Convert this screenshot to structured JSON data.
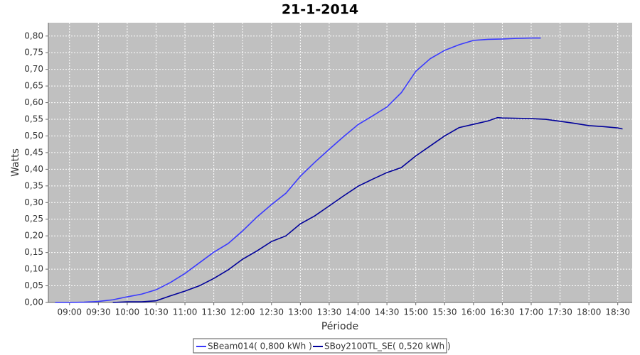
{
  "chart_data": {
    "type": "line",
    "title": "21-1-2014",
    "x_label": "Période",
    "y_label": "Watts",
    "xlim": [
      "08:38",
      "18:45"
    ],
    "xticks": [
      "09:00",
      "09:30",
      "10:00",
      "10:30",
      "11:00",
      "11:30",
      "12:00",
      "12:30",
      "13:00",
      "13:30",
      "14:00",
      "14:30",
      "15:00",
      "15:30",
      "16:00",
      "16:30",
      "17:00",
      "17:30",
      "18:00",
      "18:30"
    ],
    "ylim": [
      0,
      0.84
    ],
    "yticks": [
      {
        "value": 0,
        "label": "0,00"
      },
      {
        "value": 0.05,
        "label": "0,05"
      },
      {
        "value": 0.1,
        "label": "0,10"
      },
      {
        "value": 0.15,
        "label": "0,15"
      },
      {
        "value": 0.2,
        "label": "0,20"
      },
      {
        "value": 0.25,
        "label": "0,25"
      },
      {
        "value": 0.3,
        "label": "0,30"
      },
      {
        "value": 0.35,
        "label": "0,35"
      },
      {
        "value": 0.4,
        "label": "0,40"
      },
      {
        "value": 0.45,
        "label": "0,45"
      },
      {
        "value": 0.5,
        "label": "0,50"
      },
      {
        "value": 0.55,
        "label": "0,55"
      },
      {
        "value": 0.6,
        "label": "0,60"
      },
      {
        "value": 0.65,
        "label": "0,65"
      },
      {
        "value": 0.7,
        "label": "0,70"
      },
      {
        "value": 0.75,
        "label": "0,75"
      },
      {
        "value": 0.8,
        "label": "0,80"
      }
    ],
    "grid": true,
    "legend": "bottom",
    "series": [
      {
        "name": "SBeam014( 0,800 kWh )",
        "color": "#3a3aff",
        "x": [
          "08:45",
          "09:00",
          "09:15",
          "09:30",
          "09:45",
          "10:00",
          "10:15",
          "10:30",
          "10:45",
          "11:00",
          "11:15",
          "11:30",
          "11:45",
          "12:00",
          "12:15",
          "12:30",
          "12:45",
          "13:00",
          "13:15",
          "13:30",
          "13:45",
          "14:00",
          "14:15",
          "14:30",
          "14:45",
          "15:00",
          "15:15",
          "15:30",
          "15:45",
          "16:00",
          "16:15",
          "16:30",
          "16:45",
          "17:00",
          "17:10"
        ],
        "values": [
          0,
          0,
          0.001,
          0.003,
          0.008,
          0.017,
          0.025,
          0.038,
          0.06,
          0.087,
          0.119,
          0.151,
          0.177,
          0.215,
          0.257,
          0.294,
          0.328,
          0.379,
          0.421,
          0.46,
          0.498,
          0.534,
          0.56,
          0.587,
          0.63,
          0.694,
          0.732,
          0.757,
          0.774,
          0.787,
          0.79,
          0.791,
          0.793,
          0.794,
          0.794
        ]
      },
      {
        "name": "SBoy2100TL_SE( 0,520 kWh )",
        "color": "#00009a",
        "x": [
          "09:45",
          "10:00",
          "10:15",
          "10:30",
          "10:45",
          "11:00",
          "11:15",
          "11:30",
          "11:45",
          "12:00",
          "12:15",
          "12:30",
          "12:45",
          "13:00",
          "13:15",
          "13:30",
          "13:45",
          "14:00",
          "14:15",
          "14:30",
          "14:45",
          "15:00",
          "15:15",
          "15:30",
          "15:45",
          "16:00",
          "16:15",
          "16:25",
          "16:30",
          "17:00",
          "17:15",
          "17:30",
          "17:45",
          "18:00",
          "18:15",
          "18:30",
          "18:35"
        ],
        "values": [
          0,
          0.002,
          0.002,
          0.005,
          0.02,
          0.034,
          0.05,
          0.072,
          0.098,
          0.13,
          0.155,
          0.183,
          0.2,
          0.236,
          0.26,
          0.29,
          0.32,
          0.349,
          0.37,
          0.39,
          0.405,
          0.44,
          0.47,
          0.5,
          0.525,
          0.535,
          0.545,
          0.555,
          0.554,
          0.552,
          0.55,
          0.544,
          0.538,
          0.531,
          0.528,
          0.524,
          0.521
        ]
      }
    ]
  }
}
